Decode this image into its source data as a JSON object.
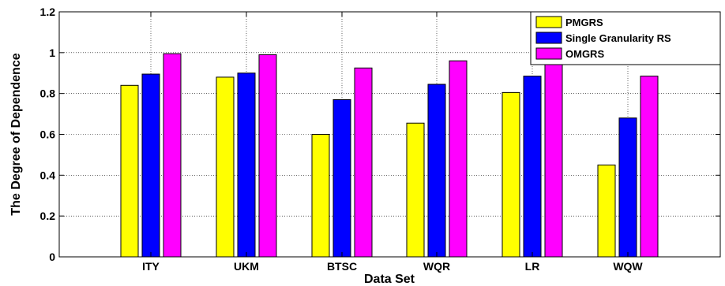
{
  "chart_data": {
    "type": "bar",
    "title": "",
    "xlabel": "Data Set",
    "ylabel": "The Degree of Dependence",
    "categories": [
      "ITY",
      "UKM",
      "BTSC",
      "WQR",
      "LR",
      "WQW"
    ],
    "ylim": [
      0,
      1.2
    ],
    "yticks": [
      "0",
      "0.2",
      "0.4",
      "0.6",
      "0.8",
      "1",
      "1.2"
    ],
    "grid": true,
    "legend_position": "top-right",
    "series": [
      {
        "name": "PMGRS",
        "color": "#ffff00",
        "values": [
          0.84,
          0.88,
          0.6,
          0.655,
          0.805,
          0.45
        ]
      },
      {
        "name": "Single Granularity RS",
        "color": "#0000ff",
        "values": [
          0.895,
          0.9,
          0.77,
          0.845,
          0.885,
          0.68
        ]
      },
      {
        "name": "OMGRS",
        "color": "#ff00ff",
        "values": [
          0.995,
          0.99,
          0.925,
          0.96,
          0.985,
          0.885
        ]
      }
    ]
  }
}
